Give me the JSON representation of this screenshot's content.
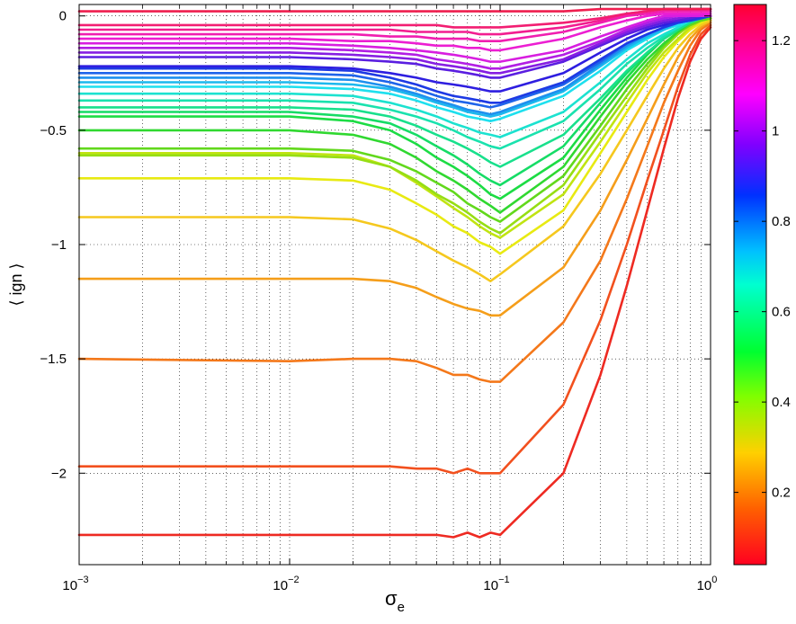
{
  "chart_data": {
    "type": "line",
    "title": "",
    "xlabel": "σ",
    "xlabel_subscript": "e",
    "ylabel": "⟨ ign ⟩",
    "xscale": "log",
    "xlim": [
      0.001,
      1
    ],
    "ylim": [
      -2.4,
      0.05
    ],
    "grid": true,
    "x_ticks": [
      0.001,
      0.01,
      0.1,
      1
    ],
    "x_tick_labels": [
      {
        "base": "10",
        "exp": "−3"
      },
      {
        "base": "10",
        "exp": "−2"
      },
      {
        "base": "10",
        "exp": "−1"
      },
      {
        "base": "10",
        "exp": "0"
      }
    ],
    "y_ticks": [
      0,
      -0.5,
      -1,
      -1.5,
      -2
    ],
    "y_tick_labels": [
      "0",
      "−0.5",
      "−1",
      "−1.5",
      "−2"
    ],
    "colorbar": {
      "range": [
        0.04,
        1.28
      ],
      "ticks": [
        0.2,
        0.4,
        0.6,
        0.8,
        1,
        1.2
      ],
      "tick_labels": [
        "0.2",
        "0.4",
        "0.6",
        "0.8",
        "1",
        "1.2"
      ],
      "colormap": "hsv"
    },
    "x": [
      0.001,
      0.01,
      0.02,
      0.03,
      0.04,
      0.05,
      0.06,
      0.07,
      0.08,
      0.09,
      0.1,
      0.2,
      0.3,
      0.4,
      0.5,
      0.6,
      0.7,
      0.8,
      0.9,
      1
    ],
    "series": [
      {
        "param": 0.05,
        "color": "#ee2a22",
        "values": [
          -2.27,
          -2.27,
          -2.27,
          -2.27,
          -2.27,
          -2.27,
          -2.28,
          -2.26,
          -2.28,
          -2.26,
          -2.27,
          -2.0,
          -1.57,
          -1.18,
          -0.85,
          -0.58,
          -0.36,
          -0.2,
          -0.1,
          -0.05
        ]
      },
      {
        "param": 0.1,
        "color": "#f2501e",
        "values": [
          -1.97,
          -1.97,
          -1.97,
          -1.97,
          -1.98,
          -1.98,
          -2.0,
          -1.98,
          -2.0,
          -2.0,
          -2.0,
          -1.7,
          -1.33,
          -1.0,
          -0.72,
          -0.5,
          -0.31,
          -0.17,
          -0.08,
          -0.04
        ]
      },
      {
        "param": 0.15,
        "color": "#f4781a",
        "values": [
          -1.5,
          -1.51,
          -1.5,
          -1.5,
          -1.51,
          -1.54,
          -1.57,
          -1.57,
          -1.59,
          -1.6,
          -1.6,
          -1.34,
          -1.07,
          -0.8,
          -0.57,
          -0.38,
          -0.24,
          -0.13,
          -0.06,
          -0.03
        ]
      },
      {
        "param": 0.2,
        "color": "#f59e1a",
        "values": [
          -1.15,
          -1.15,
          -1.15,
          -1.16,
          -1.19,
          -1.23,
          -1.26,
          -1.28,
          -1.29,
          -1.31,
          -1.31,
          -1.1,
          -0.85,
          -0.63,
          -0.45,
          -0.3,
          -0.18,
          -0.1,
          -0.05,
          -0.02
        ]
      },
      {
        "param": 0.24,
        "color": "#f5c81e",
        "values": [
          -0.88,
          -0.88,
          -0.89,
          -0.93,
          -0.98,
          -1.03,
          -1.07,
          -1.1,
          -1.13,
          -1.16,
          -1.13,
          -0.92,
          -0.69,
          -0.5,
          -0.35,
          -0.23,
          -0.14,
          -0.08,
          -0.04,
          -0.02
        ]
      },
      {
        "param": 0.28,
        "color": "#e8ea12",
        "values": [
          -0.71,
          -0.71,
          -0.72,
          -0.76,
          -0.82,
          -0.87,
          -0.92,
          -0.95,
          -0.99,
          -1.01,
          -1.04,
          -0.85,
          -0.6,
          -0.42,
          -0.28,
          -0.18,
          -0.11,
          -0.06,
          -0.03,
          -0.01
        ]
      },
      {
        "param": 0.32,
        "color": "#c0e412",
        "values": [
          -0.6,
          -0.6,
          -0.61,
          -0.66,
          -0.73,
          -0.79,
          -0.84,
          -0.88,
          -0.92,
          -0.95,
          -0.97,
          -0.78,
          -0.55,
          -0.38,
          -0.25,
          -0.16,
          -0.1,
          -0.05,
          -0.02,
          -0.01
        ]
      },
      {
        "param": 0.36,
        "color": "#96de14",
        "values": [
          -0.61,
          -0.61,
          -0.62,
          -0.66,
          -0.72,
          -0.78,
          -0.82,
          -0.86,
          -0.9,
          -0.93,
          -0.95,
          -0.74,
          -0.51,
          -0.35,
          -0.23,
          -0.14,
          -0.08,
          -0.04,
          -0.02,
          -0.01
        ]
      },
      {
        "param": 0.4,
        "color": "#62d81c",
        "values": [
          -0.58,
          -0.58,
          -0.59,
          -0.63,
          -0.68,
          -0.73,
          -0.77,
          -0.82,
          -0.85,
          -0.88,
          -0.9,
          -0.7,
          -0.48,
          -0.32,
          -0.21,
          -0.13,
          -0.07,
          -0.04,
          -0.02,
          -0.01
        ]
      },
      {
        "param": 0.44,
        "color": "#30d830",
        "values": [
          -0.5,
          -0.5,
          -0.52,
          -0.56,
          -0.62,
          -0.68,
          -0.72,
          -0.76,
          -0.8,
          -0.83,
          -0.86,
          -0.66,
          -0.44,
          -0.29,
          -0.19,
          -0.12,
          -0.07,
          -0.03,
          -0.01,
          0.0
        ]
      },
      {
        "param": 0.48,
        "color": "#1cdc44",
        "values": [
          -0.44,
          -0.44,
          -0.46,
          -0.5,
          -0.56,
          -0.62,
          -0.66,
          -0.7,
          -0.74,
          -0.78,
          -0.8,
          -0.62,
          -0.41,
          -0.27,
          -0.17,
          -0.1,
          -0.06,
          -0.03,
          -0.01,
          0.0
        ]
      },
      {
        "param": 0.52,
        "color": "#16dc66",
        "values": [
          -0.42,
          -0.42,
          -0.44,
          -0.47,
          -0.52,
          -0.57,
          -0.61,
          -0.65,
          -0.69,
          -0.72,
          -0.74,
          -0.57,
          -0.38,
          -0.25,
          -0.16,
          -0.1,
          -0.06,
          -0.03,
          -0.01,
          0.0
        ]
      },
      {
        "param": 0.56,
        "color": "#18e08c",
        "values": [
          -0.4,
          -0.4,
          -0.41,
          -0.44,
          -0.48,
          -0.52,
          -0.55,
          -0.58,
          -0.61,
          -0.64,
          -0.66,
          -0.52,
          -0.36,
          -0.24,
          -0.16,
          -0.1,
          -0.06,
          -0.03,
          -0.01,
          0.0
        ]
      },
      {
        "param": 0.6,
        "color": "#1ae2ae",
        "values": [
          -0.37,
          -0.37,
          -0.38,
          -0.41,
          -0.44,
          -0.47,
          -0.5,
          -0.53,
          -0.55,
          -0.57,
          -0.58,
          -0.46,
          -0.32,
          -0.21,
          -0.14,
          -0.09,
          -0.05,
          -0.02,
          -0.01,
          0.0
        ]
      },
      {
        "param": 0.64,
        "color": "#1ce2d0",
        "values": [
          -0.34,
          -0.34,
          -0.35,
          -0.38,
          -0.41,
          -0.44,
          -0.47,
          -0.49,
          -0.51,
          -0.52,
          -0.53,
          -0.42,
          -0.29,
          -0.19,
          -0.12,
          -0.08,
          -0.05,
          -0.02,
          -0.01,
          0.0
        ]
      },
      {
        "param": 0.68,
        "color": "#1ee0ee",
        "values": [
          -0.31,
          -0.31,
          -0.32,
          -0.34,
          -0.37,
          -0.4,
          -0.42,
          -0.44,
          -0.45,
          -0.46,
          -0.45,
          -0.35,
          -0.24,
          -0.15,
          -0.1,
          -0.06,
          -0.04,
          -0.02,
          -0.01,
          0.0
        ]
      },
      {
        "param": 0.72,
        "color": "#1cb8ee",
        "values": [
          -0.29,
          -0.29,
          -0.3,
          -0.32,
          -0.35,
          -0.38,
          -0.4,
          -0.42,
          -0.43,
          -0.44,
          -0.43,
          -0.33,
          -0.22,
          -0.14,
          -0.09,
          -0.06,
          -0.03,
          -0.02,
          -0.01,
          0.0
        ]
      },
      {
        "param": 0.76,
        "color": "#1e90ee",
        "values": [
          -0.27,
          -0.27,
          -0.28,
          -0.31,
          -0.34,
          -0.37,
          -0.39,
          -0.41,
          -0.42,
          -0.43,
          -0.42,
          -0.32,
          -0.21,
          -0.13,
          -0.08,
          -0.05,
          -0.03,
          -0.02,
          -0.01,
          0.0
        ]
      },
      {
        "param": 0.8,
        "color": "#1e64ea",
        "values": [
          -0.25,
          -0.25,
          -0.26,
          -0.29,
          -0.32,
          -0.35,
          -0.37,
          -0.38,
          -0.39,
          -0.4,
          -0.39,
          -0.3,
          -0.2,
          -0.12,
          -0.08,
          -0.05,
          -0.03,
          -0.02,
          -0.01,
          0.0
        ]
      },
      {
        "param": 0.84,
        "color": "#1e3ae4",
        "values": [
          -0.23,
          -0.23,
          -0.24,
          -0.27,
          -0.3,
          -0.33,
          -0.35,
          -0.36,
          -0.37,
          -0.38,
          -0.38,
          -0.29,
          -0.19,
          -0.12,
          -0.08,
          -0.05,
          -0.03,
          -0.02,
          -0.01,
          0.0
        ]
      },
      {
        "param": 0.88,
        "color": "#2e1ee0",
        "values": [
          -0.22,
          -0.22,
          -0.23,
          -0.25,
          -0.27,
          -0.29,
          -0.3,
          -0.31,
          -0.32,
          -0.33,
          -0.33,
          -0.25,
          -0.16,
          -0.1,
          -0.06,
          -0.04,
          -0.02,
          -0.01,
          0.0,
          0.0
        ]
      },
      {
        "param": 0.92,
        "color": "#5a1ee0",
        "values": [
          -0.18,
          -0.18,
          -0.19,
          -0.2,
          -0.21,
          -0.23,
          -0.24,
          -0.25,
          -0.26,
          -0.27,
          -0.27,
          -0.2,
          -0.13,
          -0.08,
          -0.05,
          -0.03,
          -0.02,
          -0.01,
          0.0,
          0.0
        ]
      },
      {
        "param": 0.96,
        "color": "#861ee2",
        "values": [
          -0.16,
          -0.16,
          -0.17,
          -0.18,
          -0.19,
          -0.21,
          -0.22,
          -0.23,
          -0.24,
          -0.25,
          -0.25,
          -0.19,
          -0.12,
          -0.07,
          -0.04,
          -0.02,
          -0.01,
          0.0,
          0.0,
          0.0
        ]
      },
      {
        "param": 1.0,
        "color": "#b21ee4",
        "values": [
          -0.14,
          -0.14,
          -0.15,
          -0.16,
          -0.17,
          -0.19,
          -0.2,
          -0.21,
          -0.22,
          -0.23,
          -0.23,
          -0.17,
          -0.11,
          -0.06,
          -0.03,
          -0.01,
          0.0,
          0.0,
          0.0,
          0.0
        ]
      },
      {
        "param": 1.04,
        "color": "#d81ee0",
        "values": [
          -0.12,
          -0.12,
          -0.13,
          -0.14,
          -0.15,
          -0.16,
          -0.17,
          -0.18,
          -0.19,
          -0.2,
          -0.2,
          -0.15,
          -0.09,
          -0.05,
          -0.02,
          0.0,
          0.0,
          0.0,
          0.0,
          0.0
        ]
      },
      {
        "param": 1.08,
        "color": "#ec1ed2",
        "values": [
          -0.1,
          -0.1,
          -0.11,
          -0.11,
          -0.12,
          -0.13,
          -0.13,
          -0.14,
          -0.14,
          -0.15,
          -0.15,
          -0.1,
          -0.05,
          -0.02,
          0.0,
          0.01,
          0.01,
          0.01,
          0.01,
          0.01
        ]
      },
      {
        "param": 1.12,
        "color": "#f01eb0",
        "values": [
          -0.08,
          -0.08,
          -0.08,
          -0.09,
          -0.09,
          -0.1,
          -0.1,
          -0.1,
          -0.11,
          -0.11,
          -0.11,
          -0.07,
          -0.03,
          0.0,
          0.01,
          0.02,
          0.02,
          0.02,
          0.02,
          0.02
        ]
      },
      {
        "param": 1.16,
        "color": "#f21e90",
        "values": [
          -0.06,
          -0.06,
          -0.06,
          -0.06,
          -0.07,
          -0.07,
          -0.07,
          -0.07,
          -0.08,
          -0.08,
          -0.08,
          -0.05,
          -0.02,
          0.01,
          0.02,
          0.03,
          0.03,
          0.03,
          0.03,
          0.03
        ]
      },
      {
        "param": 1.2,
        "color": "#f21e72",
        "values": [
          -0.04,
          -0.04,
          -0.04,
          -0.04,
          -0.04,
          -0.04,
          -0.05,
          -0.05,
          -0.05,
          -0.05,
          -0.05,
          -0.03,
          -0.01,
          0.01,
          0.02,
          0.03,
          0.03,
          0.03,
          0.03,
          0.03
        ]
      },
      {
        "param": 1.25,
        "color": "#ee1e4e",
        "values": [
          0.02,
          0.02,
          0.02,
          0.02,
          0.02,
          0.02,
          0.02,
          0.02,
          0.02,
          0.02,
          0.02,
          0.02,
          0.03,
          0.03,
          0.03,
          0.03,
          0.03,
          0.03,
          0.03,
          0.03
        ]
      }
    ]
  }
}
